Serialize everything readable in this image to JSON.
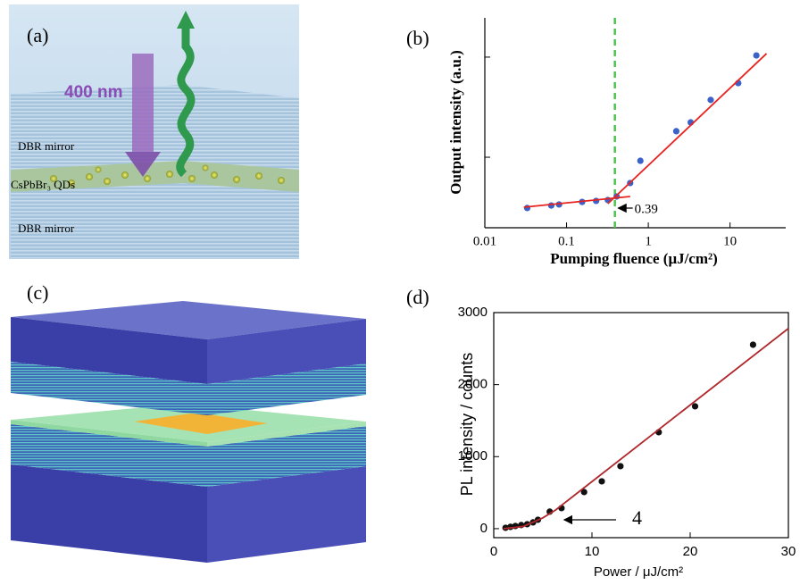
{
  "panels": {
    "a": {
      "label": "(a)",
      "pump_label": "400 nm",
      "top_layer": "DBR mirror",
      "qd_layer": "CsPbBr₃ QDs",
      "bottom_layer": "DBR mirror"
    },
    "c": {
      "label": "(c)"
    }
  },
  "chart_data": [
    {
      "type": "scatter",
      "panel_label": "(b)",
      "xlabel": "Pumping fluence (μJ/cm²)",
      "ylabel": "Output intensity (a.u.)",
      "xscale": "log",
      "xlim": [
        0.01,
        48
      ],
      "xticks": [
        0.01,
        0.1,
        1,
        10
      ],
      "ylim": [
        0,
        100
      ],
      "yticks": [
        33.6,
        81.3
      ],
      "frame": false,
      "threshold": {
        "value": 0.39,
        "label": "0.39"
      },
      "threshold_color": "#4cc34c",
      "series": [
        {
          "color": "#3a62c8",
          "x": [
            0.033,
            0.065,
            0.081,
            0.155,
            0.23,
            0.32,
            0.41,
            0.6,
            0.8,
            2.2,
            3.3,
            5.8,
            12.6,
            21
          ],
          "values": [
            9.4,
            10.6,
            11.1,
            12.3,
            12.8,
            13.2,
            14.9,
            21.3,
            31.9,
            46,
            50.2,
            60.9,
            68.9,
            82.1
          ]
        },
        {
          "color": "#e8231f",
          "style": "line",
          "x": [
            0.03,
            0.6
          ],
          "values": [
            9.8,
            14.9
          ]
        },
        {
          "color": "#e8231f",
          "style": "line",
          "x": [
            0.32,
            28
          ],
          "values": [
            11.5,
            83
          ]
        }
      ]
    },
    {
      "type": "scatter",
      "panel_label": "(d)",
      "xlabel": "Power / μJ/cm²",
      "ylabel": "PL intensity / counts",
      "xlim": [
        0,
        30
      ],
      "xticks": [
        0,
        10,
        20,
        30
      ],
      "ylim": [
        -125,
        3000
      ],
      "yticks": [
        0,
        1000,
        2000,
        3000
      ],
      "frame": true,
      "annotation": "4",
      "series": [
        {
          "color": "#111111",
          "x": [
            1.2,
            1.7,
            2.2,
            2.8,
            3.4,
            4.0,
            4.5,
            5.7,
            6.9,
            9.2,
            11.0,
            12.9,
            16.8,
            20.5,
            26.4
          ],
          "values": [
            12,
            25,
            37,
            50,
            62,
            87,
            124,
            236,
            285,
            508,
            657,
            868,
            1339,
            1699,
            2554
          ]
        },
        {
          "color": "#b0282c",
          "style": "line",
          "x": [
            1.0,
            3,
            5,
            6.3,
            30
          ],
          "values": [
            0,
            30,
            150,
            260,
            2780
          ]
        }
      ]
    }
  ]
}
